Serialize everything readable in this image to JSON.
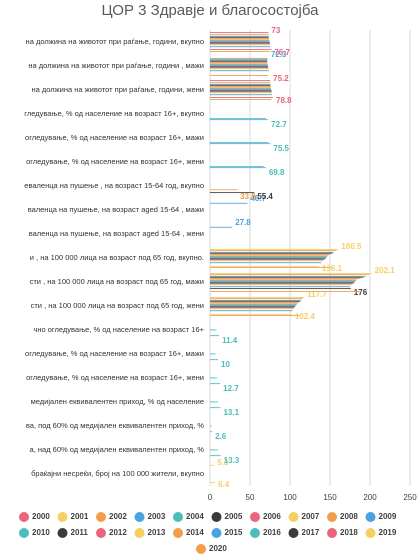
{
  "chart_data": {
    "type": "bar",
    "orientation": "horizontal",
    "title": "ЦОР 3 Здравје и благосостојба",
    "categories": [
      "на должина на животот   при раѓање, години, вкупно",
      "на должина на животот   при раѓање, години , мажи",
      "на должина на животот   при раѓање, години, жени",
      "гледување,  % од население  на возраст 16+, вкупно",
      "огледување,  % од население  на возраст 16+, мажи",
      "огледување,  % од население  на возраст 16+, жени",
      "еваленца на пушење , на   возраст 15-64 год, вкупно",
      "валенца на пушење, на   возраст aged  15-64 , мажи",
      "валенца на пушење, на   возраст aged   15-64 , жени",
      "и , на 100 000 лица  на возраст   под 65 год, вкупно.",
      "сти , на 100 000 лица  на возраст   под 65 год, мажи",
      "сти , на 100 000 лица  на возраст   под 65 год, жени",
      "чно огледување,  % од население  на возраст 16+",
      "огледување,  % од население  на возраст 16+, мажи",
      "огледување,  % од население  на возраст 16+, жени",
      "медијален еквивалентен приход,   % од население",
      "ва, под   60% од медијален еквивалентен приход, %",
      "а,   над  60% од медијален еквивалентен приход, %",
      "браќајни   несреќи, број на 100 000 жители,   вкупно"
    ],
    "xlim": [
      0,
      250
    ],
    "xticks": [
      0,
      50,
      100,
      150,
      200,
      250
    ],
    "grid": true,
    "series": [
      {
        "name": "2000",
        "color": "#e8667c",
        "labels": true,
        "values": [
          73,
          null,
          75.2,
          null,
          null,
          null,
          null,
          null,
          null,
          null,
          null,
          null,
          null,
          null,
          null,
          null,
          null,
          null,
          null
        ]
      },
      {
        "name": "2001",
        "color": "#f5cf5f",
        "labels": true,
        "values": [
          null,
          null,
          null,
          null,
          null,
          null,
          null,
          null,
          null,
          160.5,
          202.1,
          117.7,
          null,
          null,
          null,
          null,
          null,
          null,
          5.3
        ]
      },
      {
        "name": "2002",
        "color": "#f29d4b",
        "values": [
          73.3,
          71.3,
          75.4,
          null,
          null,
          null,
          null,
          null,
          null,
          158,
          199,
          116,
          null,
          null,
          null,
          null,
          null,
          null,
          null
        ]
      },
      {
        "name": "2003",
        "color": "#4aa3df",
        "labels": true,
        "values": [
          null,
          72.3,
          null,
          null,
          null,
          null,
          null,
          46.7,
          27.8,
          null,
          null,
          null,
          null,
          null,
          null,
          null,
          null,
          null,
          null
        ]
      },
      {
        "name": "2004",
        "color": "#4cbcbc",
        "values": [
          73.4,
          71.4,
          75.5,
          null,
          null,
          null,
          null,
          null,
          null,
          155,
          195,
          114,
          null,
          null,
          null,
          null,
          null,
          null,
          null
        ]
      },
      {
        "name": "2005",
        "color": "#3a3a3a",
        "values": [
          73.5,
          71.5,
          75.6,
          null,
          null,
          null,
          null,
          null,
          null,
          153,
          192,
          113,
          null,
          null,
          null,
          null,
          null,
          null,
          null
        ]
      },
      {
        "name": "2006",
        "color": "#e8667c",
        "values": [
          73.6,
          71.6,
          75.7,
          null,
          null,
          null,
          null,
          null,
          null,
          150,
          188,
          111,
          null,
          null,
          null,
          null,
          null,
          null,
          null
        ]
      },
      {
        "name": "2007",
        "color": "#f5cf5f",
        "values": [
          73.8,
          71.8,
          75.9,
          null,
          null,
          null,
          null,
          null,
          null,
          148,
          185,
          110,
          null,
          null,
          null,
          null,
          null,
          null,
          null
        ]
      },
      {
        "name": "2008",
        "color": "#f29d4b",
        "values": [
          74,
          72,
          76.1,
          null,
          null,
          null,
          null,
          null,
          null,
          147,
          183,
          109,
          null,
          null,
          null,
          null,
          null,
          null,
          null
        ]
      },
      {
        "name": "2009",
        "color": "#4aa3df",
        "values": [
          74.2,
          72.2,
          76.3,
          null,
          null,
          null,
          null,
          null,
          null,
          146,
          182,
          108,
          null,
          null,
          null,
          null,
          null,
          null,
          null
        ]
      },
      {
        "name": "2010",
        "color": "#4cbcbc",
        "values": [
          74.5,
          72.4,
          76.6,
          null,
          null,
          null,
          null,
          null,
          null,
          145,
          181,
          107,
          8,
          7,
          9,
          10,
          2,
          10,
          null
        ]
      },
      {
        "name": "2011",
        "color": "#3a3a3a",
        "values": [
          74.8,
          72.6,
          76.9,
          null,
          null,
          null,
          null,
          null,
          null,
          144,
          180,
          106,
          null,
          null,
          null,
          null,
          null,
          null,
          null
        ]
      },
      {
        "name": "2012",
        "color": "#e8667c",
        "values": [
          75,
          72.8,
          77.2,
          null,
          null,
          null,
          null,
          null,
          null,
          142,
          178,
          105,
          null,
          null,
          null,
          null,
          null,
          null,
          null
        ]
      },
      {
        "name": "2013",
        "color": "#f5cf5f",
        "values": [
          75.2,
          73,
          77.4,
          null,
          null,
          null,
          null,
          null,
          null,
          141,
          177,
          104,
          null,
          null,
          null,
          null,
          null,
          null,
          null
        ]
      },
      {
        "name": "2014",
        "color": "#f29d4b",
        "labels": true,
        "values": [
          null,
          null,
          null,
          null,
          null,
          null,
          33.9,
          null,
          null,
          null,
          null,
          null,
          null,
          null,
          null,
          null,
          null,
          null,
          null
        ]
      },
      {
        "name": "2015",
        "color": "#4aa3df",
        "values": [
          75.6,
          73.5,
          77.8,
          70,
          73,
          67,
          null,
          null,
          null,
          139,
          175,
          103,
          null,
          null,
          null,
          null,
          null,
          null,
          null
        ]
      },
      {
        "name": "2016",
        "color": "#4cbcbc",
        "labels": true,
        "values": [
          null,
          null,
          null,
          72.7,
          75.5,
          69.8,
          null,
          null,
          null,
          null,
          null,
          null,
          11.4,
          10,
          12.7,
          13.1,
          2.6,
          13.3,
          null
        ]
      },
      {
        "name": "2017",
        "color": "#3a3a3a",
        "labels": true,
        "values": [
          null,
          null,
          null,
          null,
          null,
          null,
          55.4,
          null,
          null,
          null,
          176,
          null,
          null,
          null,
          null,
          null,
          null,
          null,
          null
        ]
      },
      {
        "name": "2018",
        "color": "#e8667c",
        "labels": true,
        "values": [
          76.7,
          null,
          78.8,
          null,
          null,
          null,
          null,
          null,
          null,
          null,
          null,
          null,
          null,
          null,
          null,
          null,
          null,
          null,
          null
        ]
      },
      {
        "name": "2019",
        "color": "#f5cf5f",
        "labels": true,
        "values": [
          null,
          null,
          null,
          null,
          null,
          null,
          null,
          null,
          null,
          136.1,
          null,
          102.4,
          null,
          null,
          null,
          null,
          null,
          null,
          6.4
        ]
      },
      {
        "name": "2020",
        "color": "#f29d4b",
        "values": [
          74.5,
          72.5,
          76.5,
          null,
          null,
          null,
          null,
          null,
          null,
          150,
          190,
          112,
          null,
          null,
          null,
          null,
          null,
          null,
          null
        ]
      }
    ]
  }
}
